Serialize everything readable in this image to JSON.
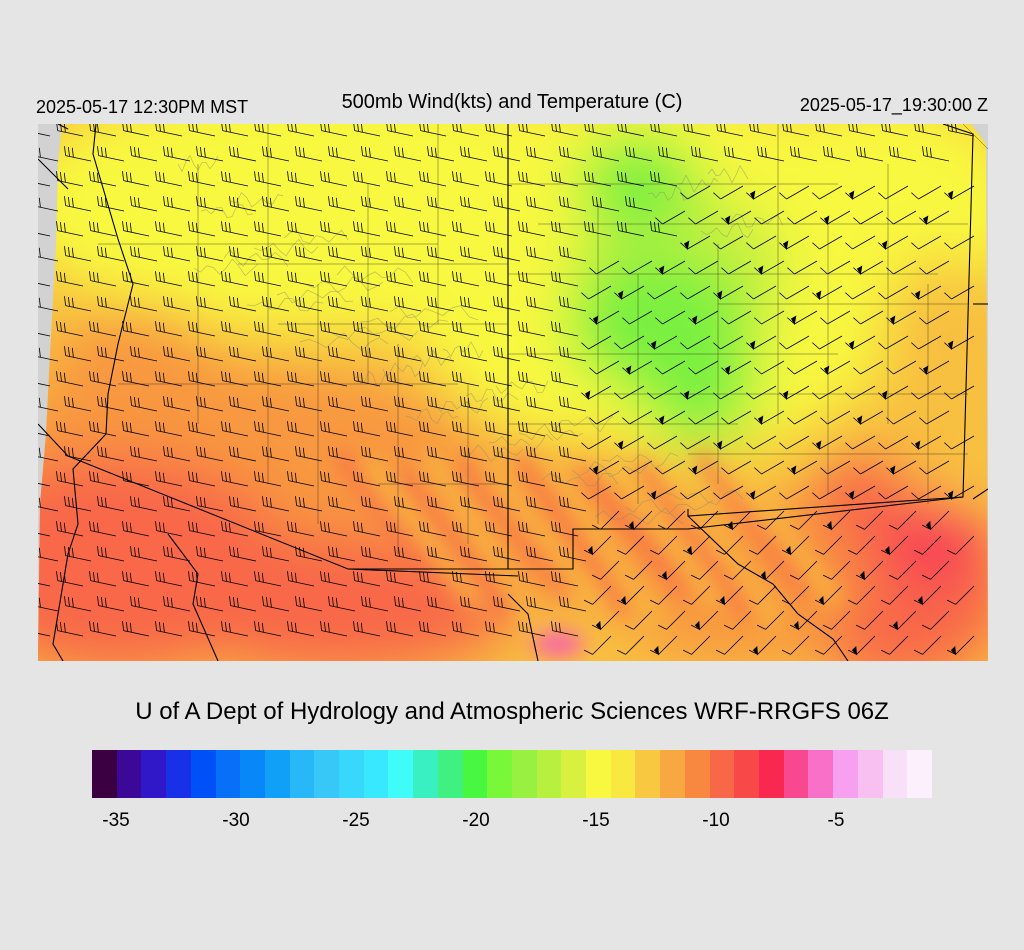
{
  "header": {
    "local_time": "2025-05-17 12:30PM MST",
    "title": "500mb Wind(kts) and Temperature (C)",
    "valid_time": "2025-05-17_19:30:00 Z"
  },
  "credit": "U of A Dept of Hydrology and Atmospheric Sciences WRF-RRGFS 06Z",
  "colorbar": {
    "min": -36,
    "max": -1,
    "colors": [
      "#3a0040",
      "#3c0898",
      "#3018c8",
      "#1830e8",
      "#0050f8",
      "#0870f8",
      "#0888f8",
      "#10a0f8",
      "#28b8f8",
      "#38c8f8",
      "#38d8fc",
      "#38e8fc",
      "#40fcf8",
      "#38f0c0",
      "#40f080",
      "#48f840",
      "#78f838",
      "#98f040",
      "#b8f040",
      "#d8f040",
      "#f8f840",
      "#f8e840",
      "#f8c840",
      "#f8a840",
      "#f88840",
      "#f86848",
      "#f84848",
      "#f82850",
      "#f84890",
      "#f870c8",
      "#f8a0f0",
      "#f8c0f0",
      "#f8e0f8",
      "#fcf0fc"
    ],
    "tick_labels": [
      "-35",
      "-30",
      "-25",
      "-20",
      "-15",
      "-10",
      "-5"
    ],
    "tick_values": [
      -35,
      -30,
      -25,
      -20,
      -15,
      -10,
      -5
    ]
  },
  "map": {
    "variable": "500mb temperature (C) with wind barbs (kts)",
    "temperature_range": [
      -22,
      -7
    ],
    "colors": {
      "cold": "#7af040",
      "cool": "#c8f040",
      "mild": "#f8f840",
      "warm": "#f8c040",
      "warmer": "#f89840",
      "hot": "#f86848",
      "max": "#f83858",
      "spot": "#f860b0",
      "outside": "#d2d2d2"
    }
  }
}
